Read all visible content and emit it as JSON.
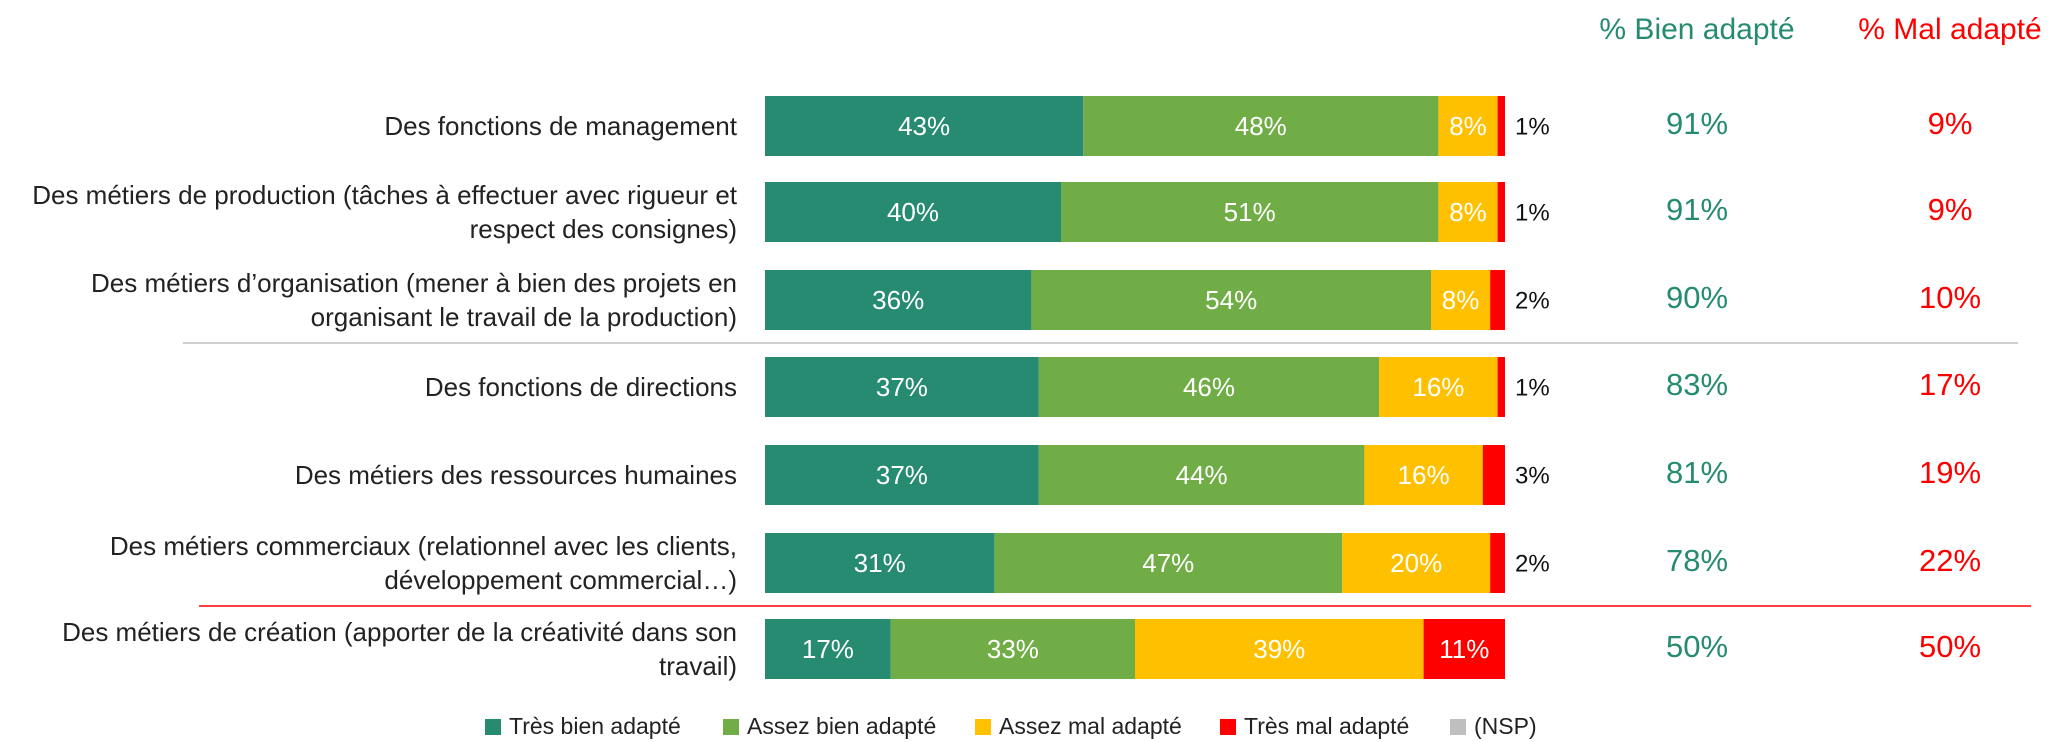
{
  "chart_data": {
    "type": "stacked_bar_horizontal",
    "categories": [
      "Des fonctions de management",
      "Des métiers de production (tâches à effectuer avec rigueur et respect des consignes)",
      "Des métiers d’organisation (mener à bien des projets en organisant le travail de la production)",
      "Des fonctions de directions",
      "Des métiers des ressources humaines",
      "Des métiers commerciaux (relationnel avec les clients, développement commercial…)",
      "Des métiers de création (apporter de la créativité dans son travail)"
    ],
    "xlim": [
      0,
      100
    ],
    "series": [
      {
        "name": "Très bien adapté",
        "color": "#268b70",
        "values": [
          43,
          40,
          36,
          37,
          37,
          31,
          17
        ],
        "value_labels": [
          "43%",
          "40%",
          "36%",
          "37%",
          "37%",
          "31%",
          "17%"
        ]
      },
      {
        "name": "Assez bien adapté",
        "color": "#70ad47",
        "values": [
          48,
          51,
          54,
          46,
          44,
          47,
          33
        ],
        "value_labels": [
          "48%",
          "51%",
          "54%",
          "46%",
          "44%",
          "47%",
          "33%"
        ]
      },
      {
        "name": "Assez mal adapté",
        "color": "#ffc000",
        "values": [
          8,
          8,
          8,
          16,
          16,
          20,
          39
        ],
        "value_labels": [
          "8%",
          "8%",
          "8%",
          "16%",
          "16%",
          "20%",
          "39%"
        ]
      },
      {
        "name": "Très mal adapté",
        "color": "#ff0000",
        "values": [
          1,
          1,
          2,
          1,
          3,
          2,
          11
        ],
        "value_labels": [
          "1%",
          "1%",
          "2%",
          "1%",
          "3%",
          "2%",
          "11%"
        ]
      },
      {
        "name": "(NSP)",
        "color": "#bfbfbf",
        "values": [
          0,
          0,
          0,
          0,
          0,
          0,
          0
        ]
      }
    ],
    "summary": [
      {
        "name": "% Bien adapté",
        "color": "#268b70",
        "values": [
          91,
          91,
          90,
          83,
          81,
          78,
          50
        ],
        "value_labels": [
          "91%",
          "91%",
          "90%",
          "83%",
          "81%",
          "78%",
          "50%"
        ]
      },
      {
        "name": "% Mal adapté",
        "color": "#ff0000",
        "values": [
          9,
          9,
          10,
          17,
          19,
          22,
          50
        ],
        "value_labels": [
          "9%",
          "9%",
          "10%",
          "17%",
          "19%",
          "22%",
          "50%"
        ]
      }
    ]
  }
}
